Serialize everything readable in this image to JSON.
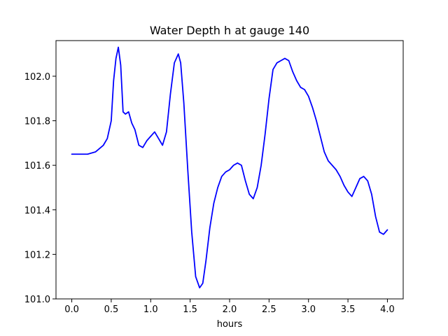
{
  "chart_data": {
    "type": "line",
    "title": "Water Depth h at gauge 140",
    "xlabel": "hours",
    "ylabel": "",
    "xlim": [
      -0.2,
      4.2
    ],
    "ylim": [
      101.0,
      102.16
    ],
    "xticks": [
      0.0,
      0.5,
      1.0,
      1.5,
      2.0,
      2.5,
      3.0,
      3.5,
      4.0
    ],
    "xtick_labels": [
      "0.0",
      "0.5",
      "1.0",
      "1.5",
      "2.0",
      "2.5",
      "3.0",
      "3.5",
      "4.0"
    ],
    "yticks": [
      101.0,
      101.2,
      101.4,
      101.6,
      101.8,
      102.0
    ],
    "ytick_labels": [
      "101.0",
      "101.2",
      "101.4",
      "101.6",
      "101.8",
      "102.0"
    ],
    "grid": false,
    "series": [
      {
        "color": "#0000ff",
        "x": [
          0.0,
          0.1,
          0.2,
          0.3,
          0.4,
          0.45,
          0.5,
          0.53,
          0.56,
          0.59,
          0.62,
          0.65,
          0.68,
          0.72,
          0.76,
          0.8,
          0.85,
          0.9,
          0.95,
          1.0,
          1.05,
          1.1,
          1.15,
          1.2,
          1.25,
          1.3,
          1.35,
          1.38,
          1.42,
          1.47,
          1.52,
          1.57,
          1.62,
          1.66,
          1.7,
          1.75,
          1.8,
          1.85,
          1.9,
          1.95,
          2.0,
          2.05,
          2.1,
          2.15,
          2.2,
          2.25,
          2.3,
          2.35,
          2.4,
          2.45,
          2.5,
          2.55,
          2.6,
          2.65,
          2.7,
          2.75,
          2.8,
          2.85,
          2.9,
          2.95,
          3.0,
          3.05,
          3.1,
          3.15,
          3.2,
          3.25,
          3.3,
          3.35,
          3.4,
          3.45,
          3.5,
          3.55,
          3.6,
          3.65,
          3.7,
          3.75,
          3.8,
          3.85,
          3.9,
          3.95,
          4.0
        ],
        "y": [
          101.65,
          101.65,
          101.65,
          101.66,
          101.69,
          101.72,
          101.8,
          101.98,
          102.08,
          102.13,
          102.05,
          101.84,
          101.83,
          101.84,
          101.79,
          101.76,
          101.69,
          101.68,
          101.71,
          101.73,
          101.75,
          101.72,
          101.69,
          101.75,
          101.92,
          102.06,
          102.1,
          102.06,
          101.88,
          101.58,
          101.3,
          101.1,
          101.05,
          101.07,
          101.17,
          101.32,
          101.43,
          101.5,
          101.55,
          101.57,
          101.58,
          101.6,
          101.61,
          101.6,
          101.53,
          101.47,
          101.45,
          101.5,
          101.6,
          101.74,
          101.9,
          102.03,
          102.06,
          102.07,
          102.08,
          102.07,
          102.02,
          101.98,
          101.95,
          101.94,
          101.91,
          101.86,
          101.8,
          101.73,
          101.66,
          101.62,
          101.6,
          101.58,
          101.55,
          101.51,
          101.48,
          101.46,
          101.5,
          101.54,
          101.55,
          101.53,
          101.47,
          101.37,
          101.3,
          101.29,
          101.31
        ]
      }
    ]
  }
}
